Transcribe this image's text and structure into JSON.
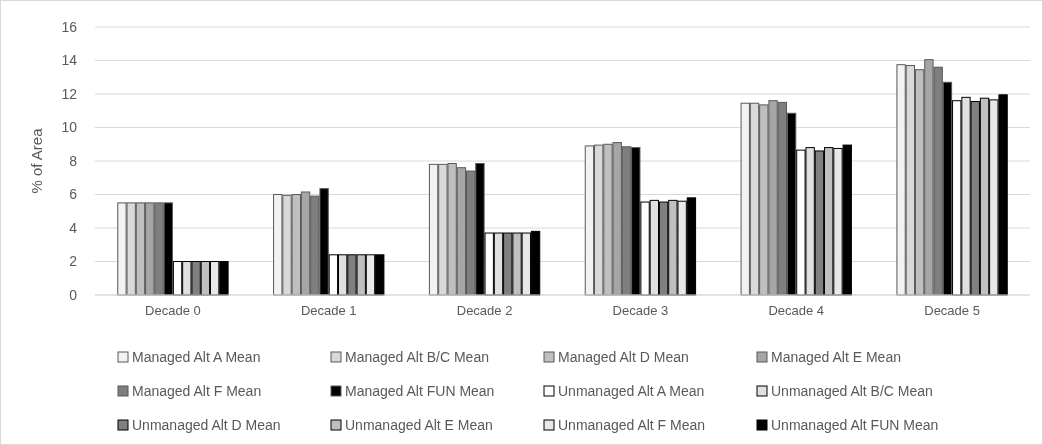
{
  "chart_data": {
    "type": "bar",
    "ylabel": "% of Area",
    "categories": [
      "Decade 0",
      "Decade 1",
      "Decade 2",
      "Decade 3",
      "Decade 4",
      "Decade 5"
    ],
    "series": [
      {
        "name": "Managed Alt A Mean",
        "color": "#f2f2f2",
        "values": [
          5.5,
          6.0,
          7.8,
          8.9,
          11.45,
          13.75
        ]
      },
      {
        "name": "Managed Alt B/C Mean",
        "color": "#d9d9d9",
        "values": [
          5.5,
          5.95,
          7.8,
          8.95,
          11.45,
          13.7
        ]
      },
      {
        "name": "Managed Alt D Mean",
        "color": "#bfbfbf",
        "values": [
          5.5,
          6.0,
          7.85,
          9.0,
          11.35,
          13.45
        ]
      },
      {
        "name": "Managed Alt E Mean",
        "color": "#a6a6a6",
        "values": [
          5.5,
          6.15,
          7.6,
          9.1,
          11.6,
          14.05
        ]
      },
      {
        "name": "Managed Alt F Mean",
        "color": "#7f7f7f",
        "values": [
          5.5,
          5.9,
          7.4,
          8.85,
          11.5,
          13.6
        ]
      },
      {
        "name": "Managed Alt FUN Mean",
        "color": "#000000",
        "values": [
          5.5,
          6.35,
          7.85,
          8.8,
          10.85,
          12.7
        ]
      },
      {
        "name": "Unmanaged Alt A Mean",
        "color": "#ffffff",
        "values": [
          2.0,
          2.4,
          3.7,
          5.55,
          8.65,
          11.6
        ]
      },
      {
        "name": "Unmanaged Alt B/C Mean",
        "color": "#e0e0e0",
        "values": [
          2.0,
          2.4,
          3.7,
          5.65,
          8.8,
          11.8
        ]
      },
      {
        "name": "Unmanaged Alt D Mean",
        "color": "#808080",
        "values": [
          2.0,
          2.4,
          3.7,
          5.55,
          8.6,
          11.55
        ]
      },
      {
        "name": "Unmanaged Alt E Mean",
        "color": "#c0c0c0",
        "values": [
          2.0,
          2.4,
          3.7,
          5.65,
          8.8,
          11.75
        ]
      },
      {
        "name": "Unmanaged Alt F Mean",
        "color": "#e8e8e8",
        "values": [
          2.0,
          2.4,
          3.7,
          5.6,
          8.75,
          11.65
        ]
      },
      {
        "name": "Unmanaged Alt FUN Mean",
        "color": "#000000",
        "values": [
          2.0,
          2.4,
          3.8,
          5.8,
          8.95,
          11.95
        ]
      }
    ],
    "ylim": [
      0,
      16
    ],
    "yticks": [
      0,
      2,
      4,
      6,
      8,
      10,
      12,
      14,
      16
    ],
    "grid": "y",
    "legend": "bottom"
  }
}
